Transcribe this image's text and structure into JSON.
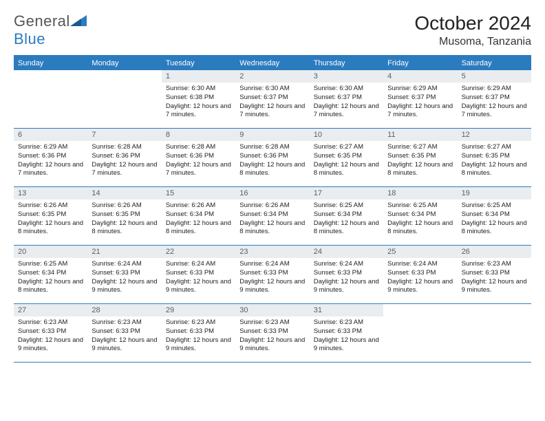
{
  "logo": {
    "text1": "General",
    "text2": "Blue"
  },
  "header": {
    "title": "October 2024",
    "location": "Musoma, Tanzania"
  },
  "colors": {
    "brand": "#2b7bbf",
    "daynum_bg": "#e9edef",
    "text": "#222222"
  },
  "dow": [
    "Sunday",
    "Monday",
    "Tuesday",
    "Wednesday",
    "Thursday",
    "Friday",
    "Saturday"
  ],
  "weeks": [
    [
      null,
      null,
      {
        "n": "1",
        "sr": "6:30 AM",
        "ss": "6:38 PM",
        "dl": "12 hours and 7 minutes."
      },
      {
        "n": "2",
        "sr": "6:30 AM",
        "ss": "6:37 PM",
        "dl": "12 hours and 7 minutes."
      },
      {
        "n": "3",
        "sr": "6:30 AM",
        "ss": "6:37 PM",
        "dl": "12 hours and 7 minutes."
      },
      {
        "n": "4",
        "sr": "6:29 AM",
        "ss": "6:37 PM",
        "dl": "12 hours and 7 minutes."
      },
      {
        "n": "5",
        "sr": "6:29 AM",
        "ss": "6:37 PM",
        "dl": "12 hours and 7 minutes."
      }
    ],
    [
      {
        "n": "6",
        "sr": "6:29 AM",
        "ss": "6:36 PM",
        "dl": "12 hours and 7 minutes."
      },
      {
        "n": "7",
        "sr": "6:28 AM",
        "ss": "6:36 PM",
        "dl": "12 hours and 7 minutes."
      },
      {
        "n": "8",
        "sr": "6:28 AM",
        "ss": "6:36 PM",
        "dl": "12 hours and 7 minutes."
      },
      {
        "n": "9",
        "sr": "6:28 AM",
        "ss": "6:36 PM",
        "dl": "12 hours and 8 minutes."
      },
      {
        "n": "10",
        "sr": "6:27 AM",
        "ss": "6:35 PM",
        "dl": "12 hours and 8 minutes."
      },
      {
        "n": "11",
        "sr": "6:27 AM",
        "ss": "6:35 PM",
        "dl": "12 hours and 8 minutes."
      },
      {
        "n": "12",
        "sr": "6:27 AM",
        "ss": "6:35 PM",
        "dl": "12 hours and 8 minutes."
      }
    ],
    [
      {
        "n": "13",
        "sr": "6:26 AM",
        "ss": "6:35 PM",
        "dl": "12 hours and 8 minutes."
      },
      {
        "n": "14",
        "sr": "6:26 AM",
        "ss": "6:35 PM",
        "dl": "12 hours and 8 minutes."
      },
      {
        "n": "15",
        "sr": "6:26 AM",
        "ss": "6:34 PM",
        "dl": "12 hours and 8 minutes."
      },
      {
        "n": "16",
        "sr": "6:26 AM",
        "ss": "6:34 PM",
        "dl": "12 hours and 8 minutes."
      },
      {
        "n": "17",
        "sr": "6:25 AM",
        "ss": "6:34 PM",
        "dl": "12 hours and 8 minutes."
      },
      {
        "n": "18",
        "sr": "6:25 AM",
        "ss": "6:34 PM",
        "dl": "12 hours and 8 minutes."
      },
      {
        "n": "19",
        "sr": "6:25 AM",
        "ss": "6:34 PM",
        "dl": "12 hours and 8 minutes."
      }
    ],
    [
      {
        "n": "20",
        "sr": "6:25 AM",
        "ss": "6:34 PM",
        "dl": "12 hours and 8 minutes."
      },
      {
        "n": "21",
        "sr": "6:24 AM",
        "ss": "6:33 PM",
        "dl": "12 hours and 9 minutes."
      },
      {
        "n": "22",
        "sr": "6:24 AM",
        "ss": "6:33 PM",
        "dl": "12 hours and 9 minutes."
      },
      {
        "n": "23",
        "sr": "6:24 AM",
        "ss": "6:33 PM",
        "dl": "12 hours and 9 minutes."
      },
      {
        "n": "24",
        "sr": "6:24 AM",
        "ss": "6:33 PM",
        "dl": "12 hours and 9 minutes."
      },
      {
        "n": "25",
        "sr": "6:24 AM",
        "ss": "6:33 PM",
        "dl": "12 hours and 9 minutes."
      },
      {
        "n": "26",
        "sr": "6:23 AM",
        "ss": "6:33 PM",
        "dl": "12 hours and 9 minutes."
      }
    ],
    [
      {
        "n": "27",
        "sr": "6:23 AM",
        "ss": "6:33 PM",
        "dl": "12 hours and 9 minutes."
      },
      {
        "n": "28",
        "sr": "6:23 AM",
        "ss": "6:33 PM",
        "dl": "12 hours and 9 minutes."
      },
      {
        "n": "29",
        "sr": "6:23 AM",
        "ss": "6:33 PM",
        "dl": "12 hours and 9 minutes."
      },
      {
        "n": "30",
        "sr": "6:23 AM",
        "ss": "6:33 PM",
        "dl": "12 hours and 9 minutes."
      },
      {
        "n": "31",
        "sr": "6:23 AM",
        "ss": "6:33 PM",
        "dl": "12 hours and 9 minutes."
      },
      null,
      null
    ]
  ],
  "labels": {
    "sunrise": "Sunrise:",
    "sunset": "Sunset:",
    "daylight": "Daylight:"
  }
}
